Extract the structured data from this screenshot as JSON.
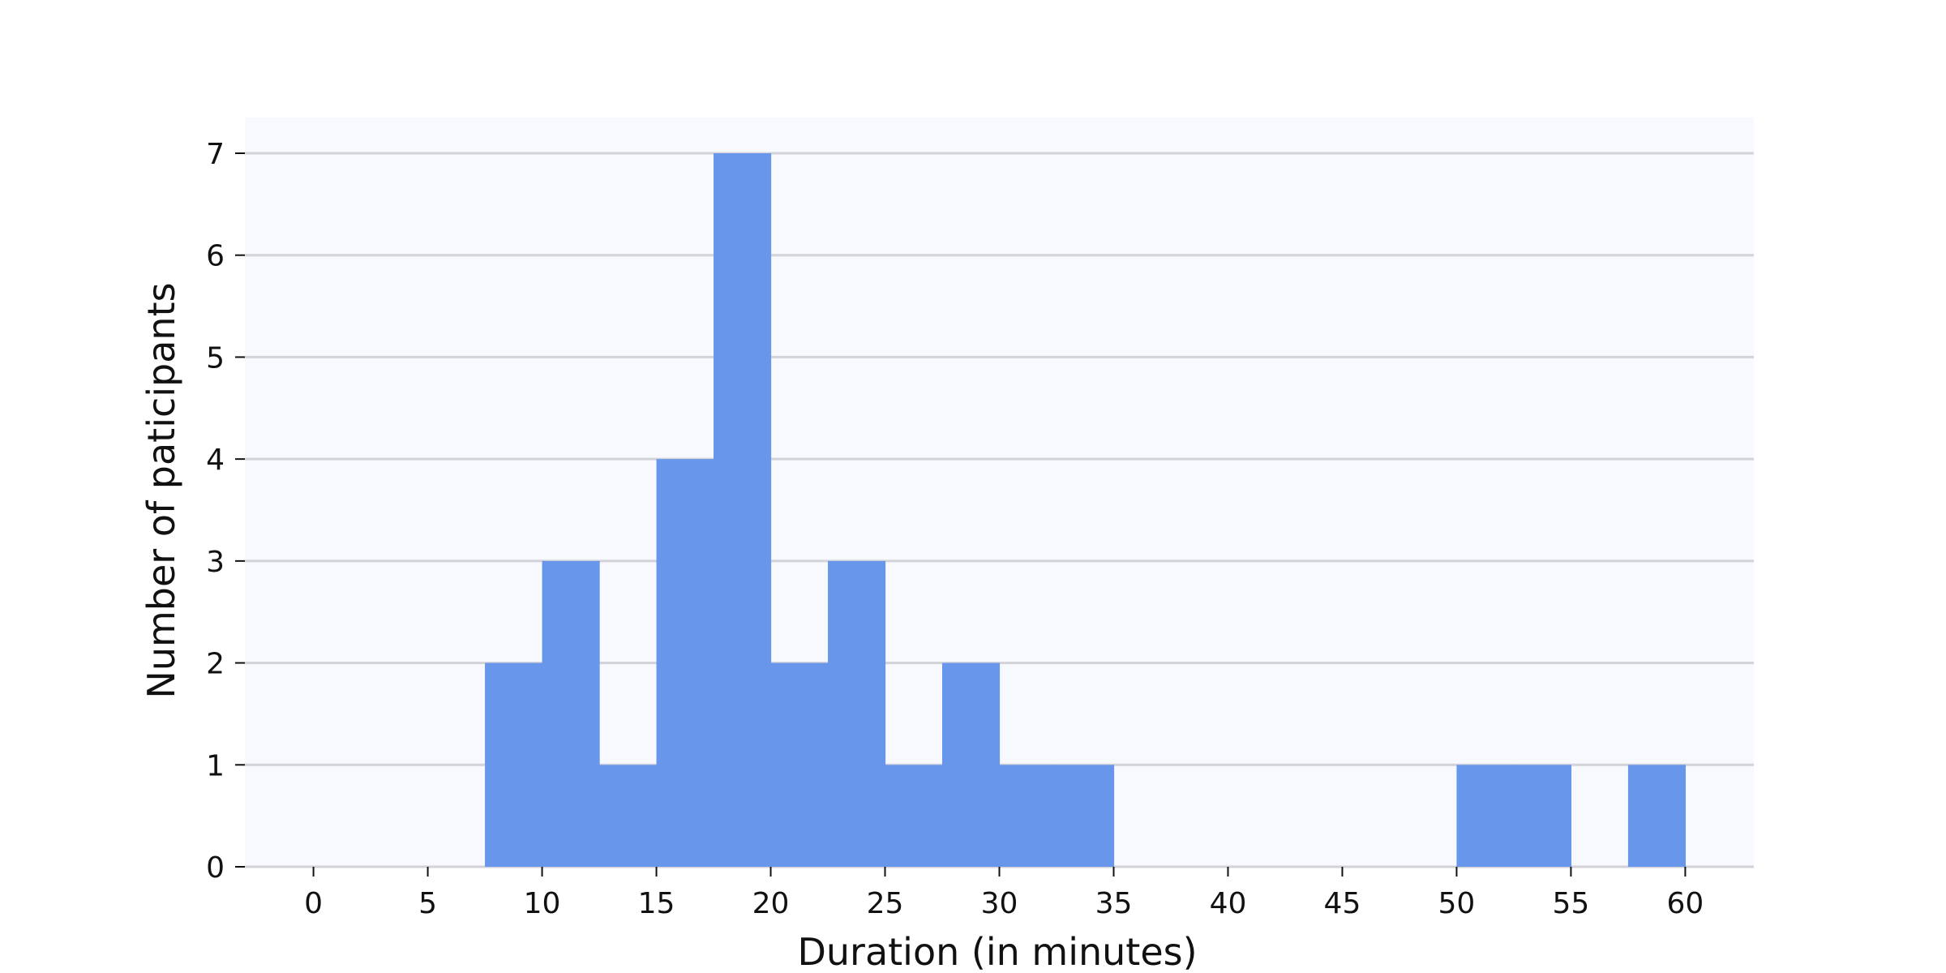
{
  "chart_data": {
    "type": "bar",
    "subtype": "histogram",
    "title": "",
    "xlabel": "Duration (in minutes)",
    "ylabel": "Number of paticipants",
    "bin_width": 2.5,
    "bins": [
      {
        "start": 7.5,
        "end": 10,
        "count": 2
      },
      {
        "start": 10,
        "end": 12.5,
        "count": 3
      },
      {
        "start": 12.5,
        "end": 15,
        "count": 1
      },
      {
        "start": 15,
        "end": 17.5,
        "count": 4
      },
      {
        "start": 17.5,
        "end": 20,
        "count": 7
      },
      {
        "start": 20,
        "end": 22.5,
        "count": 2
      },
      {
        "start": 22.5,
        "end": 25,
        "count": 3
      },
      {
        "start": 25,
        "end": 27.5,
        "count": 1
      },
      {
        "start": 27.5,
        "end": 30,
        "count": 2
      },
      {
        "start": 30,
        "end": 32.5,
        "count": 1
      },
      {
        "start": 32.5,
        "end": 35,
        "count": 1
      },
      {
        "start": 50,
        "end": 52.5,
        "count": 1
      },
      {
        "start": 52.5,
        "end": 55,
        "count": 1
      },
      {
        "start": 57.5,
        "end": 60,
        "count": 1
      }
    ],
    "xticks": [
      0,
      5,
      10,
      15,
      20,
      25,
      30,
      35,
      40,
      45,
      50,
      55,
      60
    ],
    "yticks": [
      0,
      1,
      2,
      3,
      4,
      5,
      6,
      7
    ],
    "xlim": [
      -3,
      63
    ],
    "ylim": [
      0,
      7.35
    ],
    "grid": "horizontal",
    "legend": "none",
    "colors": {
      "bar": "#6796ea",
      "plot_background": "#f7f9fe",
      "grid": "#d2d2d8",
      "text": "#111111"
    }
  }
}
